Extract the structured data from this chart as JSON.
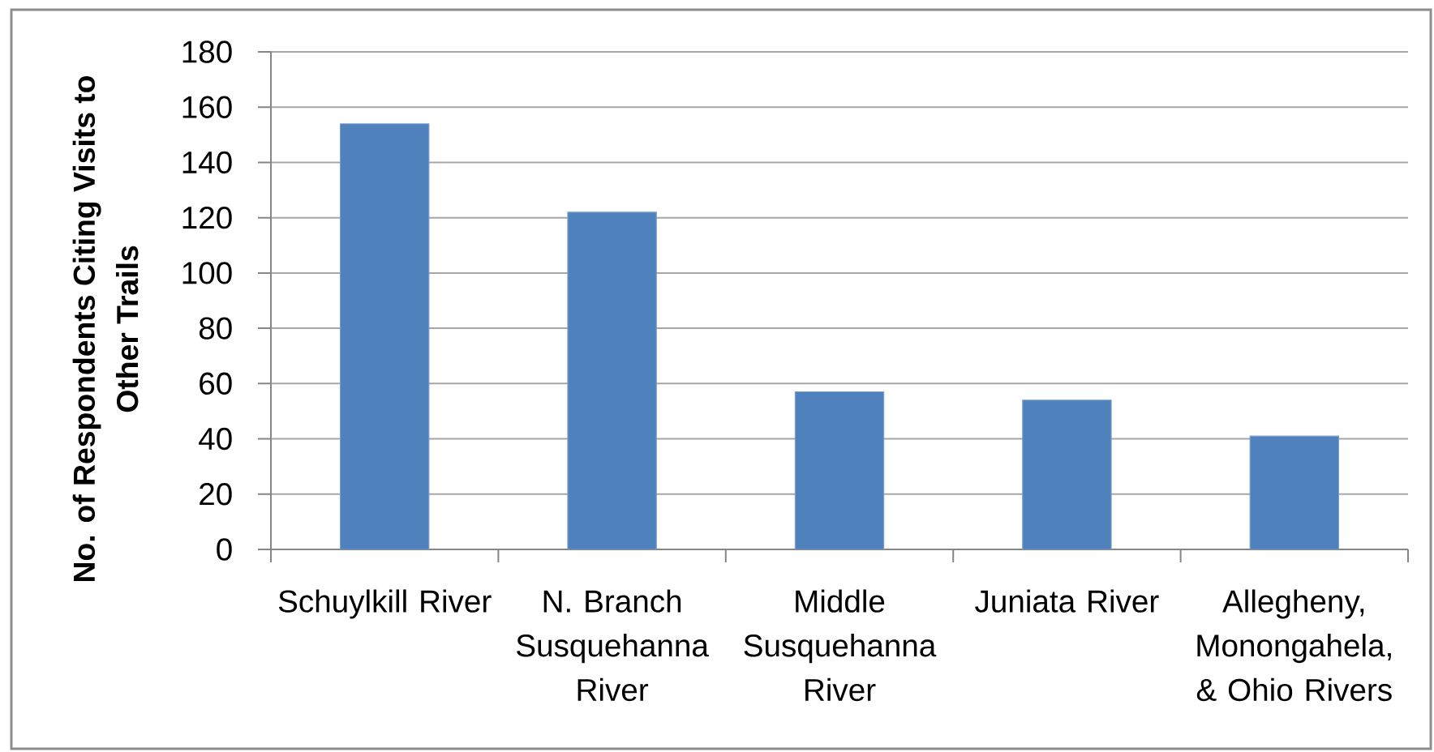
{
  "chart_data": {
    "type": "bar",
    "ylabel": "No. of Respondents Citing Visits to Other Trails",
    "categories": [
      "Schuylkill River",
      "N. Branch Susquehanna River",
      "Middle Susquehanna River",
      "Juniata River",
      "Allegheny, Monongahela, & Ohio Rivers"
    ],
    "values": [
      154,
      122,
      57,
      54,
      41
    ],
    "color": "#4f81bd",
    "ylim": [
      0,
      180
    ],
    "yticks": [
      0,
      20,
      40,
      60,
      80,
      100,
      120,
      140,
      160,
      180
    ],
    "grid": "y"
  }
}
